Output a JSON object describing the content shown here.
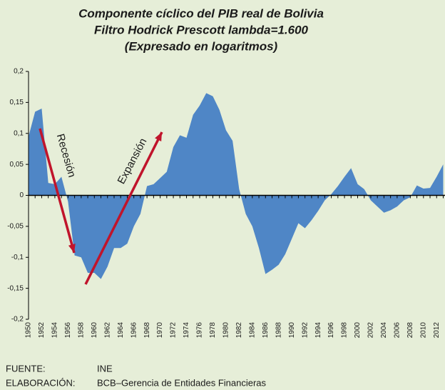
{
  "chart_data": {
    "type": "area",
    "title": [
      "Componente cíclico del PIB real de Bolivia",
      "Filtro Hodrick Prescott lambda=1.600",
      "(Expresado en logaritmos)"
    ],
    "categories": [
      "1950",
      null,
      "1952",
      null,
      "1954",
      null,
      "1956",
      null,
      "1958",
      null,
      "1960",
      null,
      "1962",
      null,
      "1964",
      null,
      "1966",
      null,
      "1968",
      null,
      "1970",
      null,
      "1972",
      null,
      "1974",
      null,
      "1976",
      null,
      "1978",
      null,
      "1980",
      null,
      "1982",
      null,
      "1984",
      null,
      "1986",
      null,
      "1988",
      null,
      "1990",
      null,
      "1992",
      null,
      "1994",
      null,
      "1996",
      null,
      "1998",
      null,
      "2000",
      null,
      "2002",
      null,
      "2004",
      null,
      "2006",
      null,
      "2008",
      null,
      "2010",
      null,
      "2012",
      null
    ],
    "values": [
      0.095,
      0.135,
      0.14,
      0.02,
      0.018,
      0.03,
      -0.01,
      -0.097,
      -0.1,
      -0.125,
      -0.125,
      -0.135,
      -0.115,
      -0.085,
      -0.085,
      -0.078,
      -0.05,
      -0.03,
      0.015,
      0.018,
      0.028,
      0.038,
      0.078,
      0.097,
      0.093,
      0.13,
      0.145,
      0.165,
      0.16,
      0.138,
      0.105,
      0.088,
      0.01,
      -0.03,
      -0.05,
      -0.085,
      -0.127,
      -0.12,
      -0.112,
      -0.095,
      -0.07,
      -0.045,
      -0.053,
      -0.04,
      -0.025,
      -0.008,
      0.002,
      0.015,
      0.03,
      0.044,
      0.018,
      0.01,
      -0.008,
      -0.018,
      -0.028,
      -0.024,
      -0.018,
      -0.008,
      -0.003,
      0.016,
      0.011,
      0.012,
      0.03,
      0.05
    ],
    "color": "#4f86c6",
    "ylim": [
      -0.2,
      0.2
    ],
    "yticks": [
      {
        "value": -0.2,
        "label": "-0,2"
      },
      {
        "value": -0.15,
        "label": "-0,15"
      },
      {
        "value": -0.1,
        "label": "-0,1"
      },
      {
        "value": -0.05,
        "label": "-0,05"
      },
      {
        "value": 0,
        "label": "0"
      },
      {
        "value": 0.05,
        "label": "0,05"
      },
      {
        "value": 0.1,
        "label": "0,1"
      },
      {
        "value": 0.15,
        "label": "0,15"
      },
      {
        "value": 0.2,
        "label": "0,2"
      }
    ],
    "annotations": [
      "Recesión",
      "Expansión"
    ]
  },
  "footer": [
    {
      "label": "FUENTE:",
      "value": "INE"
    },
    {
      "label": "ELABORACIÓN:",
      "value": "BCB–Gerencia de Entidades Financieras"
    }
  ]
}
